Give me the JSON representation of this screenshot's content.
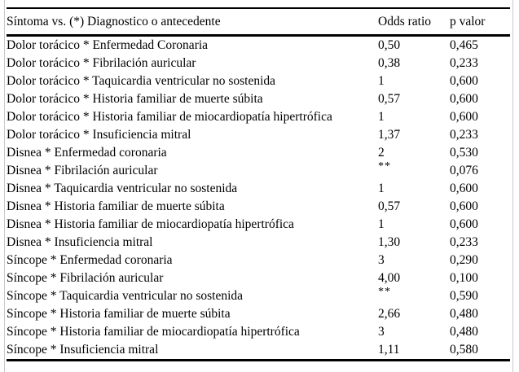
{
  "colors": {
    "background": "#ffffff",
    "text": "#000000",
    "rule": "#000000",
    "edge_line": "#c9c9c9"
  },
  "table": {
    "header": {
      "symptom_diagnosis": "Síntoma vs. (*) Diagnostico o antecedente",
      "odds_ratio": "Odds ratio",
      "p_value": "p valor"
    },
    "rows": [
      {
        "symptom_diagnosis": "Dolor torácico * Enfermedad Coronaria",
        "odds_ratio": "0,50",
        "odds_ratio_is_superscript": false,
        "p_value": "0,465"
      },
      {
        "symptom_diagnosis": "Dolor torácico * Fibrilación auricular",
        "odds_ratio": "0,38",
        "odds_ratio_is_superscript": false,
        "p_value": "0,233"
      },
      {
        "symptom_diagnosis": "Dolor torácico * Taquicardia ventricular no sostenida",
        "odds_ratio": "1",
        "odds_ratio_is_superscript": false,
        "p_value": "0,600"
      },
      {
        "symptom_diagnosis": "Dolor torácico * Historia familiar de muerte súbita",
        "odds_ratio": "0,57",
        "odds_ratio_is_superscript": false,
        "p_value": "0,600"
      },
      {
        "symptom_diagnosis": "Dolor torácico * Historia familiar de miocardiopatía hipertrófica",
        "odds_ratio": "1",
        "odds_ratio_is_superscript": false,
        "p_value": "0,600"
      },
      {
        "symptom_diagnosis": "Dolor torácico * Insuficiencia mitral",
        "odds_ratio": "1,37",
        "odds_ratio_is_superscript": false,
        "p_value": "0,233"
      },
      {
        "symptom_diagnosis": "Disnea * Enfermedad coronaria",
        "odds_ratio": "2",
        "odds_ratio_is_superscript": false,
        "p_value": "0,530"
      },
      {
        "symptom_diagnosis": "Disnea * Fibrilación auricular",
        "odds_ratio": "**",
        "odds_ratio_is_superscript": true,
        "p_value": "0,076"
      },
      {
        "symptom_diagnosis": "Disnea * Taquicardia ventricular no sostenida",
        "odds_ratio": "1",
        "odds_ratio_is_superscript": false,
        "p_value": "0,600"
      },
      {
        "symptom_diagnosis": "Disnea * Historia familiar de muerte súbita",
        "odds_ratio": "0,57",
        "odds_ratio_is_superscript": false,
        "p_value": "0,600"
      },
      {
        "symptom_diagnosis": "Disnea * Historia familiar de miocardiopatía hipertrófica",
        "odds_ratio": "1",
        "odds_ratio_is_superscript": false,
        "p_value": "0,600"
      },
      {
        "symptom_diagnosis": "Disnea * Insuficiencia mitral",
        "odds_ratio": "1,30",
        "odds_ratio_is_superscript": false,
        "p_value": "0,233"
      },
      {
        "symptom_diagnosis": "Síncope * Enfermedad coronaria",
        "odds_ratio": "3",
        "odds_ratio_is_superscript": false,
        "p_value": "0,290"
      },
      {
        "symptom_diagnosis": "Síncope * Fibrilación auricular",
        "odds_ratio": "4,00",
        "odds_ratio_is_superscript": false,
        "p_value": "0,100"
      },
      {
        "symptom_diagnosis": "Síncope * Taquicardia ventricular no sostenida",
        "odds_ratio": "**",
        "odds_ratio_is_superscript": true,
        "p_value": "0,590"
      },
      {
        "symptom_diagnosis": "Síncope * Historia familiar de muerte súbita",
        "odds_ratio": "2,66",
        "odds_ratio_is_superscript": false,
        "p_value": "0,480"
      },
      {
        "symptom_diagnosis": "Síncope * Historia familiar de miocardiopatía hipertrófica",
        "odds_ratio": "3",
        "odds_ratio_is_superscript": false,
        "p_value": "0,480"
      },
      {
        "symptom_diagnosis": "Síncope * Insuficiencia mitral",
        "odds_ratio": "1,11",
        "odds_ratio_is_superscript": false,
        "p_value": "0,580"
      }
    ]
  }
}
